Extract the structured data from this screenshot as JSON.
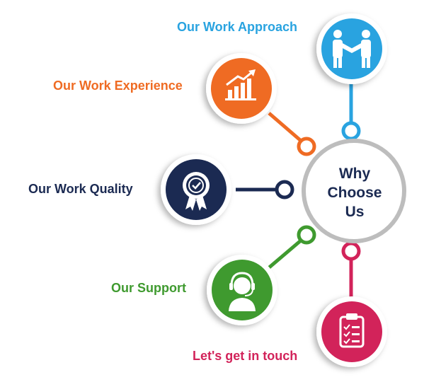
{
  "center": {
    "line1": "Why",
    "line2": "Choose",
    "line3": "Us",
    "ring_color": "#bdbdbd",
    "text_color": "#1b2a52"
  },
  "nodes": [
    {
      "key": "approach",
      "label": "Our Work Approach",
      "color": "#29a3e0",
      "icon": "handshake-icon"
    },
    {
      "key": "experience",
      "label": "Our Work Experience",
      "color": "#ef6b23",
      "icon": "growth-chart-icon"
    },
    {
      "key": "quality",
      "label": "Our Work Quality",
      "color": "#1b2a52",
      "icon": "quality-badge-icon"
    },
    {
      "key": "support",
      "label": "Our Support",
      "color": "#3f9a2f",
      "icon": "headset-agent-icon"
    },
    {
      "key": "contact",
      "label": "Let's get in touch",
      "color": "#d2235a",
      "icon": "clipboard-checklist-icon"
    }
  ]
}
